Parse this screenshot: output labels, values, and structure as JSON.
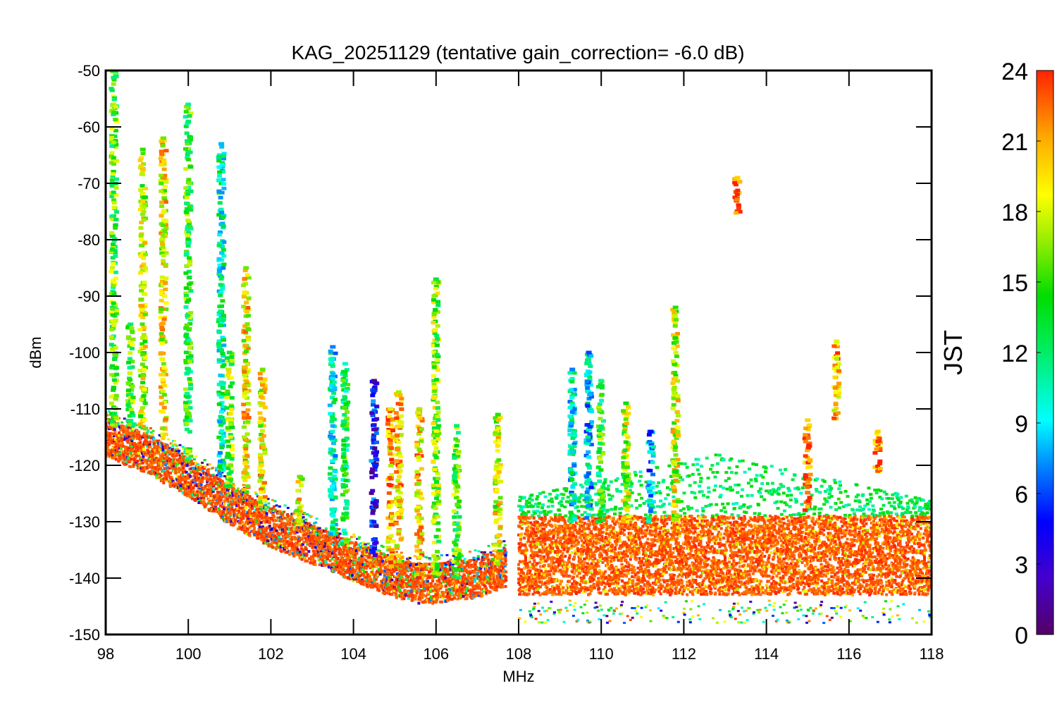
{
  "chart_data": {
    "type": "scatter",
    "title": "KAG_20251129 (tentative gain_correction= -6.0 dB)",
    "xlabel": "MHz",
    "ylabel": "dBm",
    "xlim": [
      98,
      118
    ],
    "ylim": [
      -150,
      -50
    ],
    "xticks": [
      "98",
      "100",
      "102",
      "104",
      "106",
      "108",
      "110",
      "112",
      "114",
      "116",
      "118"
    ],
    "yticks": [
      "-50",
      "-60",
      "-70",
      "-80",
      "-90",
      "-100",
      "-110",
      "-120",
      "-130",
      "-140",
      "-150"
    ],
    "colorbar": {
      "label": "JST",
      "range": [
        0,
        24
      ],
      "ticks": [
        "0",
        "3",
        "6",
        "9",
        "12",
        "15",
        "18",
        "21",
        "24"
      ]
    },
    "noise_floor": {
      "fm_band": [
        {
          "x": 98.0,
          "y": -114
        },
        {
          "x": 99.0,
          "y": -117
        },
        {
          "x": 100.0,
          "y": -121
        },
        {
          "x": 101.0,
          "y": -126
        },
        {
          "x": 102.0,
          "y": -130
        },
        {
          "x": 103.0,
          "y": -133
        },
        {
          "x": 104.0,
          "y": -136
        },
        {
          "x": 105.0,
          "y": -139
        },
        {
          "x": 105.5,
          "y": -140
        },
        {
          "x": 106.0,
          "y": -140
        },
        {
          "x": 107.0,
          "y": -139
        },
        {
          "x": 107.7,
          "y": -137
        }
      ],
      "air_band": {
        "x_start": 108.0,
        "x_end": 118.0,
        "low": -145,
        "high": -129
      }
    },
    "stations": [
      {
        "freq": 98.2,
        "peak": -50,
        "bottom": -113,
        "hour": 15
      },
      {
        "freq": 98.6,
        "peak": -95,
        "bottom": -113,
        "hour": 15
      },
      {
        "freq": 98.9,
        "peak": -64,
        "bottom": -114,
        "hour": 18
      },
      {
        "freq": 99.4,
        "peak": -62,
        "bottom": -116,
        "hour": 19
      },
      {
        "freq": 100.0,
        "peak": -56,
        "bottom": -120,
        "hour": 14
      },
      {
        "freq": 100.8,
        "peak": -63,
        "bottom": -122,
        "hour": 11
      },
      {
        "freq": 101.0,
        "peak": -100,
        "bottom": -124,
        "hour": 16
      },
      {
        "freq": 101.4,
        "peak": -85,
        "bottom": -125,
        "hour": 19
      },
      {
        "freq": 101.8,
        "peak": -103,
        "bottom": -127,
        "hour": 19
      },
      {
        "freq": 102.7,
        "peak": -122,
        "bottom": -131,
        "hour": 19
      },
      {
        "freq": 103.5,
        "peak": -99,
        "bottom": -133,
        "hour": 10
      },
      {
        "freq": 103.8,
        "peak": -102,
        "bottom": -134,
        "hour": 13
      },
      {
        "freq": 104.5,
        "peak": -105,
        "bottom": -136,
        "hour": 4
      },
      {
        "freq": 104.9,
        "peak": -110,
        "bottom": -138,
        "hour": 21
      },
      {
        "freq": 105.1,
        "peak": -107,
        "bottom": -139,
        "hour": 20
      },
      {
        "freq": 105.6,
        "peak": -110,
        "bottom": -140,
        "hour": 20
      },
      {
        "freq": 106.0,
        "peak": -87,
        "bottom": -140,
        "hour": 16
      },
      {
        "freq": 106.5,
        "peak": -113,
        "bottom": -140,
        "hour": 15
      },
      {
        "freq": 107.5,
        "peak": -111,
        "bottom": -138,
        "hour": 18
      },
      {
        "freq": 109.3,
        "peak": -103,
        "bottom": -130,
        "hour": 10
      },
      {
        "freq": 109.7,
        "peak": -100,
        "bottom": -130,
        "hour": 9
      },
      {
        "freq": 110.0,
        "peak": -105,
        "bottom": -130,
        "hour": 14
      },
      {
        "freq": 110.6,
        "peak": -109,
        "bottom": -130,
        "hour": 17
      },
      {
        "freq": 111.2,
        "peak": -114,
        "bottom": -130,
        "hour": 8
      },
      {
        "freq": 111.8,
        "peak": -92,
        "bottom": -130,
        "hour": 18
      },
      {
        "freq": 113.3,
        "peak": -69,
        "bottom": -76,
        "hour": 23
      },
      {
        "freq": 115.0,
        "peak": -112,
        "bottom": -128,
        "hour": 23
      },
      {
        "freq": 115.7,
        "peak": -98,
        "bottom": -112,
        "hour": 21
      },
      {
        "freq": 116.7,
        "peak": -114,
        "bottom": -122,
        "hour": 23
      }
    ]
  }
}
